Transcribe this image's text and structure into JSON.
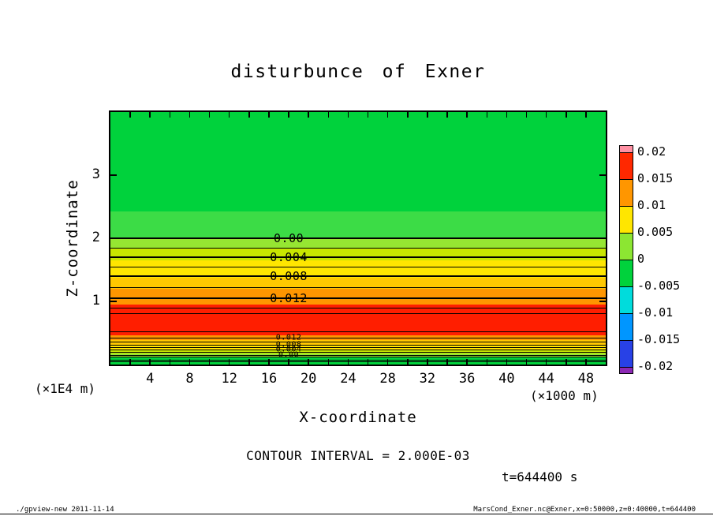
{
  "page": {
    "footer_left": "./gpview-new  2011-11-14",
    "footer_right": "MarsCond_Exner.nc@Exner,x=0:50000,z=0:40000,t=644400"
  },
  "chart_data": {
    "type": "filled-contour",
    "title": "disturbunce of Exner",
    "xlabel": "X-coordinate",
    "ylabel": "Z-coordinate",
    "x_unit_label": "(×1000 m)",
    "y_unit_label": "(×1E4 m)",
    "x_range": [
      0,
      50
    ],
    "y_range": [
      0,
      4
    ],
    "x_minor_tick_step": 2,
    "x_tick_labels": [
      "4",
      "8",
      "12",
      "16",
      "20",
      "24",
      "28",
      "32",
      "36",
      "40",
      "44",
      "48"
    ],
    "y_tick_labels": [
      "1",
      "2",
      "3"
    ],
    "contour_interval_label": "CONTOUR INTERVAL = 2.000E-03",
    "time_label": "t=644400 s",
    "field_description": "Exner function disturbance; nearly uniform in x, varying with z",
    "z_profile": [
      {
        "z_x1e4_m": 4.0,
        "value": -0.001
      },
      {
        "z_x1e4_m": 3.0,
        "value": -0.001
      },
      {
        "z_x1e4_m": 2.4,
        "value": -0.0005
      },
      {
        "z_x1e4_m": 2.0,
        "value": 0.0
      },
      {
        "z_x1e4_m": 1.7,
        "value": 0.004
      },
      {
        "z_x1e4_m": 1.4,
        "value": 0.008
      },
      {
        "z_x1e4_m": 1.05,
        "value": 0.012
      },
      {
        "z_x1e4_m": 0.7,
        "value": 0.0155
      },
      {
        "z_x1e4_m": 0.425,
        "value": 0.012
      },
      {
        "z_x1e4_m": 0.31,
        "value": 0.008
      },
      {
        "z_x1e4_m": 0.24,
        "value": 0.004
      },
      {
        "z_x1e4_m": 0.16,
        "value": 0.0
      },
      {
        "z_x1e4_m": 0.0,
        "value": -0.001
      }
    ],
    "fill_bands": [
      {
        "z_top": 4.0,
        "z_bottom": 2.42,
        "color": "#00D23C"
      },
      {
        "z_top": 2.42,
        "z_bottom": 2.0,
        "color": "#3CDC46"
      },
      {
        "z_top": 2.0,
        "z_bottom": 1.85,
        "color": "#96E632"
      },
      {
        "z_top": 1.85,
        "z_bottom": 1.65,
        "color": "#C8E600"
      },
      {
        "z_top": 1.65,
        "z_bottom": 1.38,
        "color": "#FFE600"
      },
      {
        "z_top": 1.38,
        "z_bottom": 1.2,
        "color": "#FFC800"
      },
      {
        "z_top": 1.2,
        "z_bottom": 0.95,
        "color": "#FF9600"
      },
      {
        "z_top": 0.95,
        "z_bottom": 0.46,
        "color": "#FF1E00"
      },
      {
        "z_top": 0.46,
        "z_bottom": 0.39,
        "color": "#FF9600"
      },
      {
        "z_top": 0.39,
        "z_bottom": 0.31,
        "color": "#FFC800"
      },
      {
        "z_top": 0.31,
        "z_bottom": 0.24,
        "color": "#FFE600"
      },
      {
        "z_top": 0.24,
        "z_bottom": 0.175,
        "color": "#C8E600"
      },
      {
        "z_top": 0.175,
        "z_bottom": 0.11,
        "color": "#96E632"
      },
      {
        "z_top": 0.11,
        "z_bottom": 0.0,
        "color": "#00D23C"
      }
    ],
    "contours": [
      {
        "z": 2.0,
        "label": "0.00"
      },
      {
        "z": 1.85
      },
      {
        "z": 1.7,
        "label": "0.004"
      },
      {
        "z": 1.55
      },
      {
        "z": 1.4,
        "label": "0.008"
      },
      {
        "z": 1.225
      },
      {
        "z": 1.05,
        "label": "0.012"
      },
      {
        "z": 0.9
      },
      {
        "z": 0.81
      },
      {
        "z": 0.525
      },
      {
        "z": 0.425,
        "label": "0.012",
        "small": true
      },
      {
        "z": 0.3625
      },
      {
        "z": 0.3125,
        "label": "0.008",
        "small": true
      },
      {
        "z": 0.275
      },
      {
        "z": 0.2375,
        "label": "0.004",
        "small": true
      },
      {
        "z": 0.2
      },
      {
        "z": 0.15,
        "label": "0.00",
        "small": true
      },
      {
        "z": 0.115
      },
      {
        "z": 0.075
      },
      {
        "z": 0.04
      }
    ],
    "colorbar": {
      "tick_labels": [
        "0.02",
        "0.015",
        "0.01",
        "0.005",
        "0",
        "-0.005",
        "-0.01",
        "-0.015",
        "-0.02"
      ],
      "segment_colors_top_to_bottom": [
        "#FF91A4",
        "#FF2800",
        "#FF9600",
        "#FFE600",
        "#8CE632",
        "#00D23C",
        "#00DCDC",
        "#0096FF",
        "#2841E6",
        "#8C28B4"
      ]
    }
  }
}
